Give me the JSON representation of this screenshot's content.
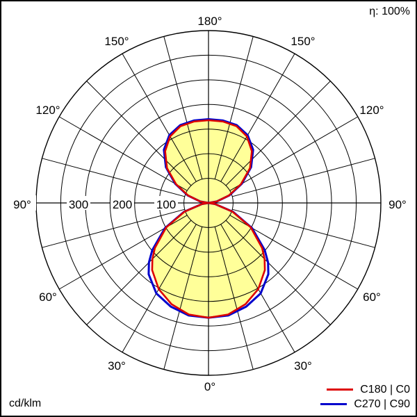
{
  "efficiency": "η: 100%",
  "unit": "cd/klm",
  "colors": {
    "fill": "#ffff99",
    "grid": "#000000",
    "c0_c180": "#dd0000",
    "c90_c270": "#0000cc"
  },
  "angle_labels": {
    "a180": "180°",
    "a150": "150°",
    "a120": "120°",
    "a90": "90°",
    "a60": "60°",
    "a30": "30°",
    "a0": "0°"
  },
  "radial_labels": [
    "100",
    "200",
    "300"
  ],
  "chart_data": {
    "type": "line",
    "subtype": "polar-luminous-intensity",
    "unit": "cd/klm",
    "rmax": 350,
    "rings": [
      50,
      100,
      150,
      200,
      250,
      300,
      350
    ],
    "ring_labels": [
      100,
      200,
      300
    ],
    "spoke_step_deg": 15,
    "angle_labels_deg": [
      0,
      30,
      60,
      90,
      120,
      150,
      180
    ],
    "series": [
      {
        "name": "C180 | C0",
        "color": "#dd0000",
        "gamma": [
          0,
          10,
          20,
          30,
          40,
          45,
          50,
          60,
          70,
          80,
          90,
          100,
          110,
          120,
          130,
          140,
          150,
          160,
          170,
          180
        ],
        "intensity": [
          233,
          230,
          219,
          202,
          178,
          161,
          142,
          99,
          52,
          14,
          0,
          17,
          44,
          76,
          110,
          137,
          156,
          166,
          168,
          168
        ]
      },
      {
        "name": "C270 | C90",
        "color": "#0000cc",
        "gamma": [
          0,
          10,
          20,
          30,
          40,
          45,
          50,
          60,
          70,
          80,
          90,
          100,
          110,
          120,
          130,
          140,
          150,
          160,
          170,
          180
        ],
        "intensity": [
          233,
          232,
          224,
          212,
          189,
          171,
          149,
          102,
          53,
          14,
          0,
          17,
          45,
          78,
          113,
          141,
          159,
          168,
          170,
          170
        ]
      }
    ]
  }
}
